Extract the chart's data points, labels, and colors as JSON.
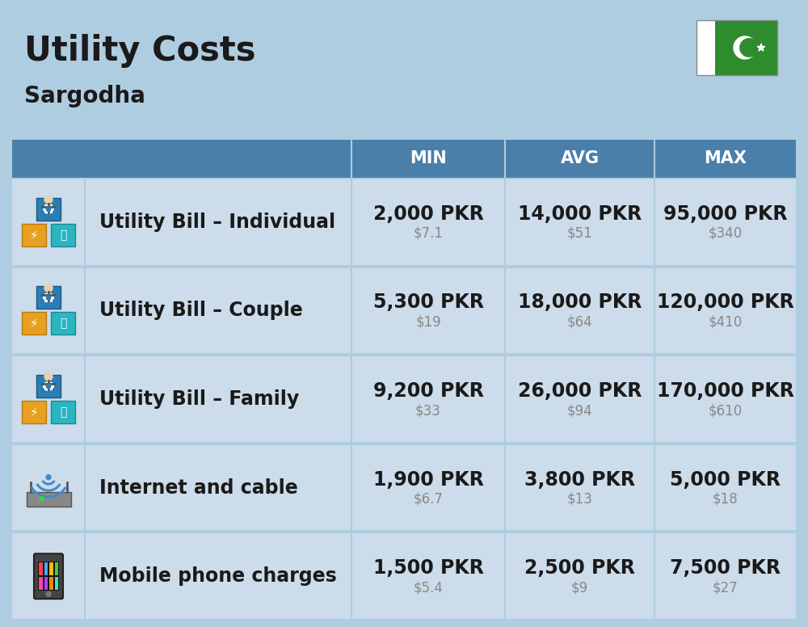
{
  "title": "Utility Costs",
  "subtitle": "Sargodha",
  "background_color": "#aecde0",
  "header_color": "#4a7faa",
  "header_text_color": "#ffffff",
  "row_bg_color": "#ccdcea",
  "row_gap_color": "#aecde0",
  "col_headers": [
    "MIN",
    "AVG",
    "MAX"
  ],
  "rows": [
    {
      "label": "Utility Bill – Individual",
      "icon": "utility",
      "min_pkr": "2,000 PKR",
      "min_usd": "$7.1",
      "avg_pkr": "14,000 PKR",
      "avg_usd": "$51",
      "max_pkr": "95,000 PKR",
      "max_usd": "$340"
    },
    {
      "label": "Utility Bill – Couple",
      "icon": "utility",
      "min_pkr": "5,300 PKR",
      "min_usd": "$19",
      "avg_pkr": "18,000 PKR",
      "avg_usd": "$64",
      "max_pkr": "120,000 PKR",
      "max_usd": "$410"
    },
    {
      "label": "Utility Bill – Family",
      "icon": "utility",
      "min_pkr": "9,200 PKR",
      "min_usd": "$33",
      "avg_pkr": "26,000 PKR",
      "avg_usd": "$94",
      "max_pkr": "170,000 PKR",
      "max_usd": "$610"
    },
    {
      "label": "Internet and cable",
      "icon": "internet",
      "min_pkr": "1,900 PKR",
      "min_usd": "$6.7",
      "avg_pkr": "3,800 PKR",
      "avg_usd": "$13",
      "max_pkr": "5,000 PKR",
      "max_usd": "$18"
    },
    {
      "label": "Mobile phone charges",
      "icon": "mobile",
      "min_pkr": "1,500 PKR",
      "min_usd": "$5.4",
      "avg_pkr": "2,500 PKR",
      "avg_usd": "$9",
      "max_pkr": "7,500 PKR",
      "max_usd": "$27"
    }
  ],
  "title_fontsize": 30,
  "subtitle_fontsize": 20,
  "header_fontsize": 15,
  "cell_pkr_fontsize": 17,
  "cell_usd_fontsize": 12,
  "label_fontsize": 17
}
